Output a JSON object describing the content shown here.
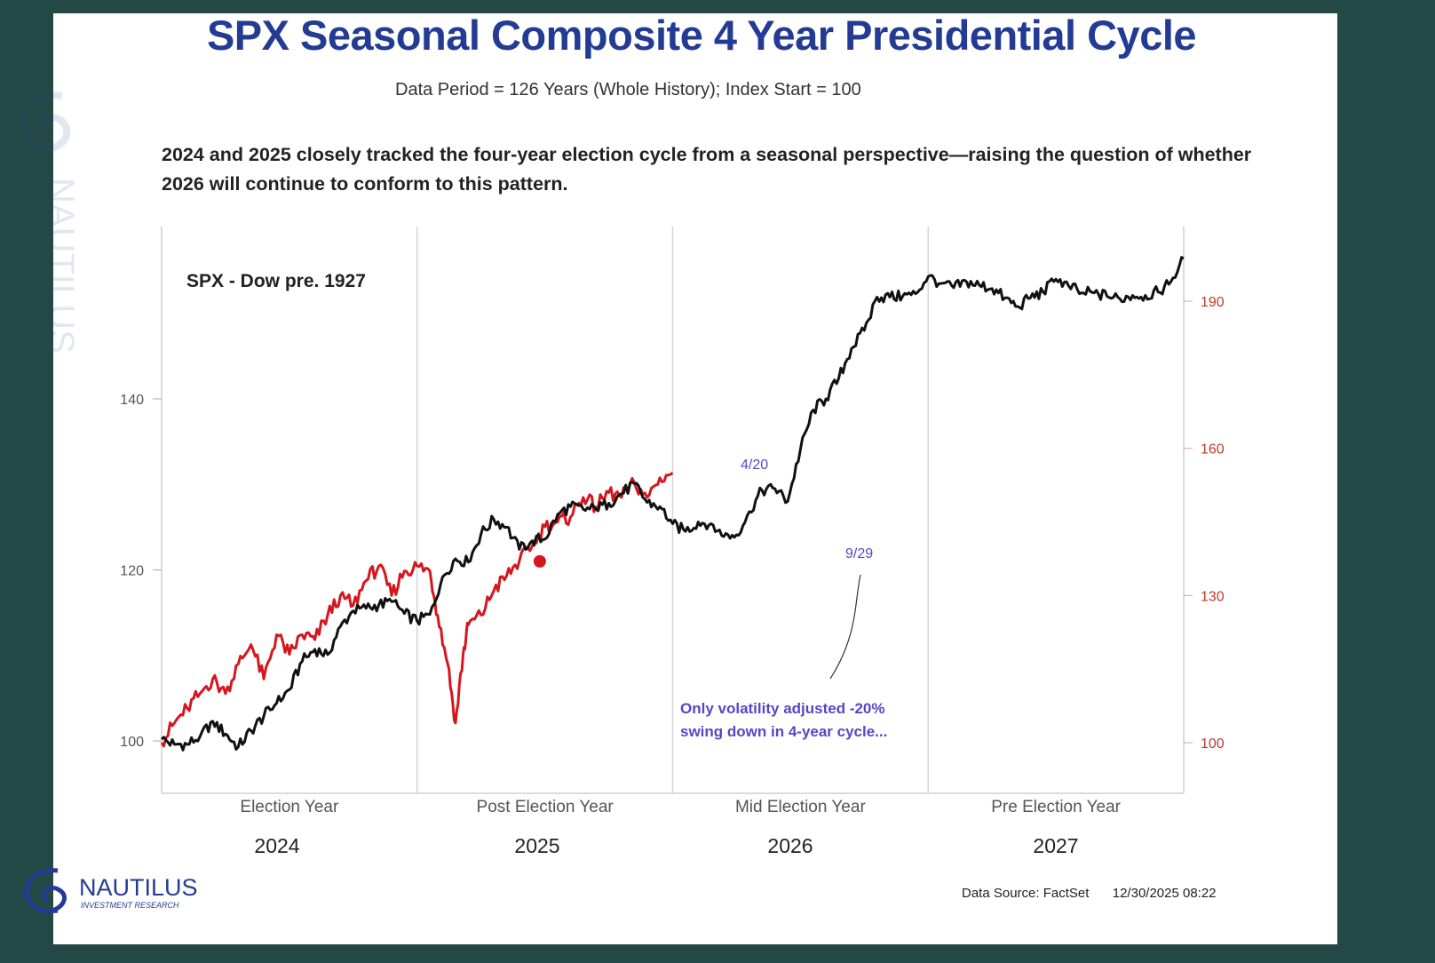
{
  "title": "SPX Seasonal Composite 4 Year Presidential Cycle",
  "subtitle": "Data Period = 126 Years (Whole History); Index Start = 100",
  "note": "2024 and 2025 closely tracked the four-year election cycle from a seasonal perspective—raising the question of whether 2026 will continue to conform to this pattern.",
  "footer": {
    "source": "Data Source: FactSet",
    "timestamp": "12/30/2025 08:22",
    "logo_text": "NAUTILUS",
    "logo_sub": "INVESTMENT RESEARCH"
  },
  "colors": {
    "title": "#243b94",
    "black_series": "#111111",
    "red_series": "#d6161f",
    "right_axis": "#c0392b",
    "annotation": "#5548c8"
  },
  "chart_data": {
    "type": "line",
    "series_label": "SPX - Dow pre. 1927",
    "x_periods": [
      "Election Year",
      "Post Election Year",
      "Mid Election Year",
      "Pre Election Year"
    ],
    "years": [
      "2024",
      "2025",
      "2026",
      "2027"
    ],
    "y_left": {
      "ticks": [
        100,
        120,
        140
      ],
      "range": [
        96,
        162
      ]
    },
    "y_right": {
      "ticks": [
        100,
        130,
        160,
        190
      ],
      "range": [
        94,
        215
      ]
    },
    "grid": "vertical lines between periods",
    "series": [
      {
        "axis": "left",
        "color": "#111111",
        "x": [
          0,
          0.05,
          0.1,
          0.15,
          0.2,
          0.25,
          0.3,
          0.35,
          0.4,
          0.45,
          0.5,
          0.55,
          0.6,
          0.65,
          0.7,
          0.75,
          0.8,
          0.85,
          0.9,
          0.95,
          1.0,
          1.05,
          1.1,
          1.15,
          1.2,
          1.25,
          1.3,
          1.35,
          1.4,
          1.45,
          1.5,
          1.55,
          1.6,
          1.65,
          1.7,
          1.75,
          1.8,
          1.85,
          1.9,
          1.95,
          2.0,
          2.05,
          2.1,
          2.15,
          2.2,
          2.25,
          2.3,
          2.35,
          2.4,
          2.45,
          2.5,
          2.55,
          2.6,
          2.65,
          2.7,
          2.75,
          2.8,
          2.85,
          2.9,
          2.95,
          3.0,
          3.05,
          3.1,
          3.15,
          3.2,
          3.25,
          3.3,
          3.35,
          3.4,
          3.45,
          3.5,
          3.55,
          3.6,
          3.65,
          3.7,
          3.75,
          3.8,
          3.85,
          3.9,
          3.95,
          4.0
        ],
        "values": [
          100.2,
          99.6,
          99.6,
          100.5,
          102.3,
          100.8,
          99.3,
          101.2,
          102.9,
          104.4,
          106.0,
          109.3,
          110.7,
          110.1,
          113.4,
          115.2,
          115.5,
          115.9,
          116.3,
          114.9,
          114.0,
          114.8,
          119.2,
          121.3,
          120.9,
          124.2,
          125.9,
          125.0,
          122.4,
          123.4,
          123.6,
          126.5,
          127.4,
          127.1,
          127.1,
          127.8,
          128.9,
          130.1,
          127.9,
          127.4,
          125.4,
          124.5,
          125.6,
          125.4,
          123.9,
          124.1,
          126.8,
          129.3,
          129.5,
          128.0,
          134.1,
          138.7,
          140.0,
          142.4,
          145.9,
          148.0,
          151.9,
          151.9,
          152.0,
          152.3,
          154.3,
          153.5,
          153.0,
          153.7,
          153.3,
          152.9,
          151.8,
          150.8,
          151.8,
          152.5,
          154.0,
          153.2,
          152.4,
          152.4,
          152.0,
          151.7,
          152.1,
          152.1,
          152.5,
          153.7,
          156.4
        ]
      },
      {
        "axis": "right",
        "color": "#d6161f",
        "x": [
          0,
          0.05,
          0.1,
          0.15,
          0.2,
          0.25,
          0.3,
          0.35,
          0.4,
          0.45,
          0.5,
          0.55,
          0.6,
          0.65,
          0.7,
          0.75,
          0.8,
          0.85,
          0.9,
          0.95,
          1.0,
          1.05,
          1.08,
          1.12,
          1.15,
          1.18,
          1.2,
          1.25,
          1.3,
          1.35,
          1.4,
          1.45,
          1.5,
          1.55,
          1.6,
          1.65,
          1.7,
          1.75,
          1.8,
          1.85,
          1.9,
          1.95,
          2.0
        ],
        "values": [
          100,
          104,
          107,
          110,
          113,
          110,
          116,
          120,
          113,
          122,
          118,
          122,
          121,
          126,
          130,
          128,
          133,
          136,
          130,
          135,
          136,
          135,
          126,
          116,
          104,
          118,
          124,
          126,
          131,
          134,
          137,
          140,
          144,
          145,
          146,
          150,
          148,
          151,
          150,
          153,
          150,
          154,
          155
        ]
      }
    ],
    "highlight_point": {
      "x": 1.48,
      "value": 121.0,
      "axis": "left",
      "color": "#d6161f"
    },
    "annotations": [
      {
        "text": "4/20",
        "x": 2.32,
        "value": 131.8
      },
      {
        "text": "9/29",
        "x": 2.73,
        "value": 121.4
      },
      {
        "text": "Only volatility adjusted -20% swing down in 4-year cycle...",
        "lines": [
          "Only volatility adjusted -20%",
          "swing down in 4-year cycle..."
        ],
        "x": 2.62,
        "value": 102.5
      }
    ]
  }
}
